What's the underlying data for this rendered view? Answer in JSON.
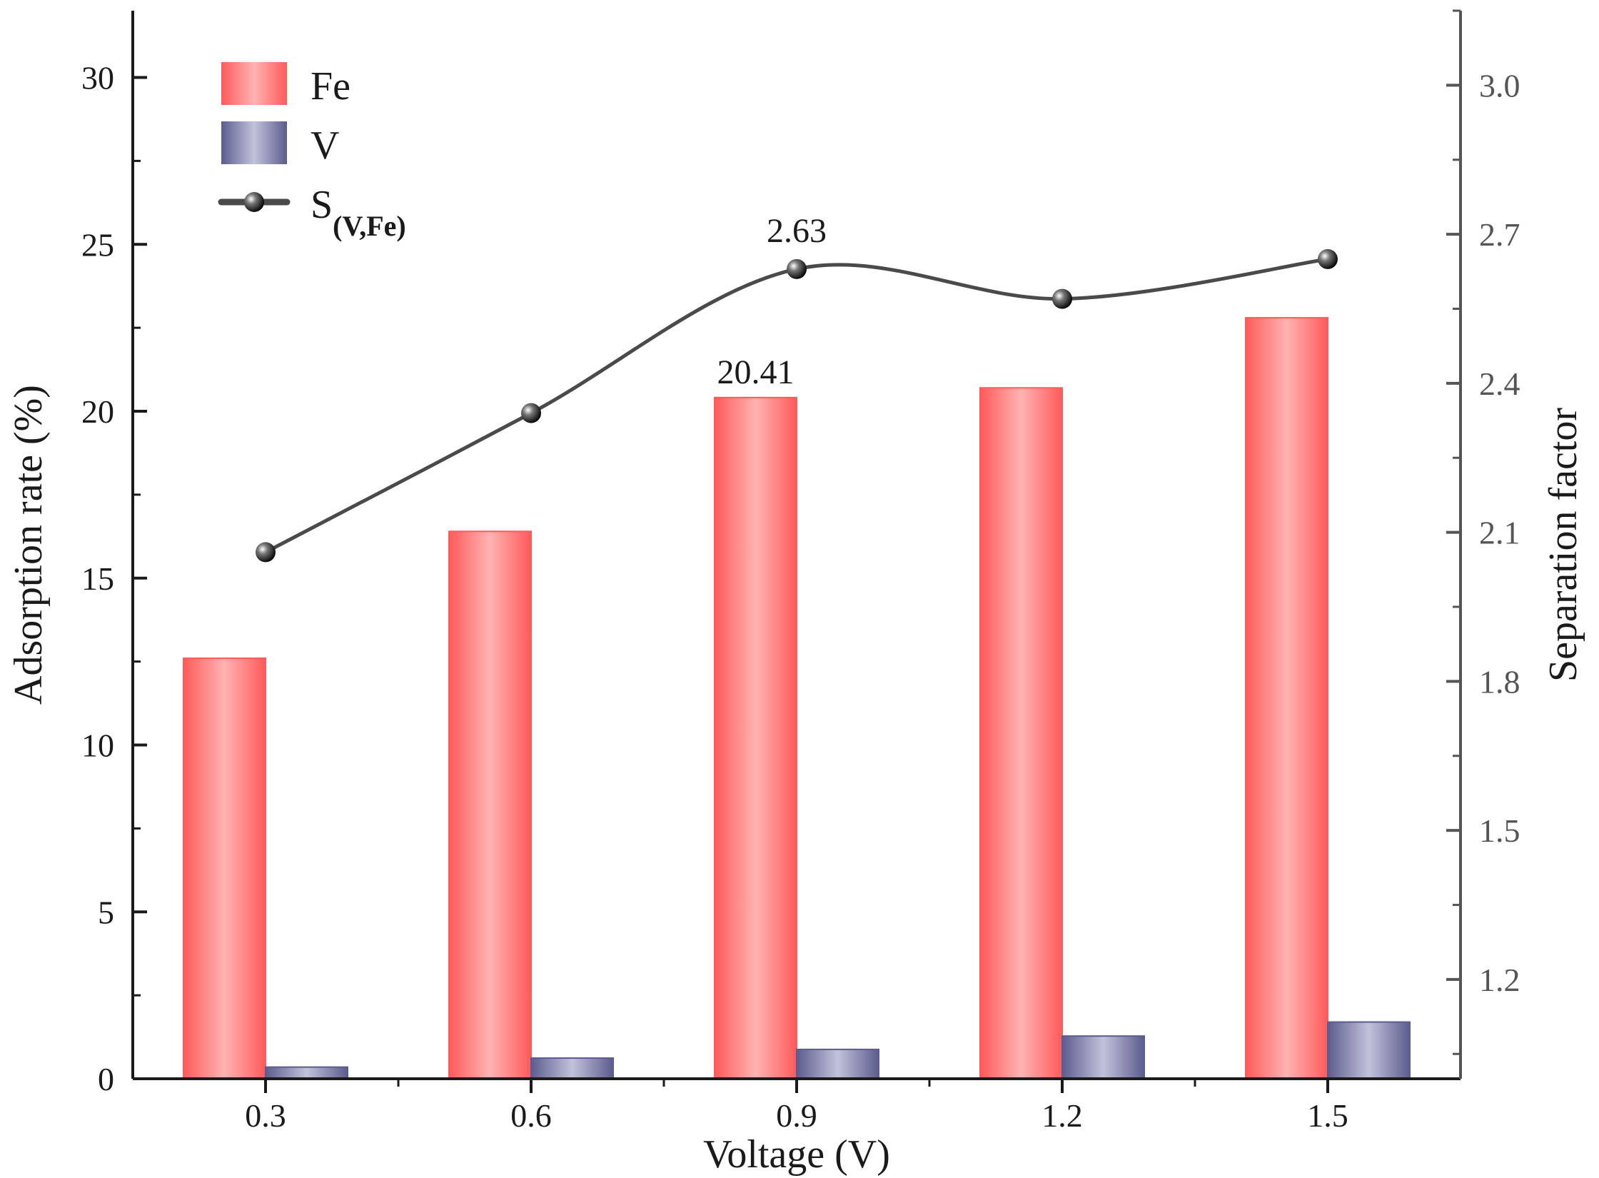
{
  "colors": {
    "fe_edge": "#ff5a5a",
    "fe_center": "#ffb3b3",
    "v_edge": "#5c5c8e",
    "v_center": "#c2c2dc",
    "line": "#4a4a4a",
    "axis": "#1a1a1a",
    "right_axis": "#555555"
  },
  "chart_data": {
    "type": "bar",
    "categories": [
      "0.3",
      "0.6",
      "0.9",
      "1.2",
      "1.5"
    ],
    "series": [
      {
        "name": "Fe",
        "axis": "left",
        "type": "bar",
        "values": [
          12.6,
          16.4,
          20.41,
          20.7,
          22.8
        ]
      },
      {
        "name": "V",
        "axis": "left",
        "type": "bar",
        "values": [
          0.35,
          0.62,
          0.88,
          1.28,
          1.7
        ]
      },
      {
        "name": "S(V,Fe)",
        "axis": "right",
        "type": "line",
        "smooth": true,
        "values": [
          2.06,
          2.34,
          2.63,
          2.57,
          2.65
        ]
      }
    ],
    "xlabel": "Voltage (V)",
    "ylabel": "Adsorption rate (%)",
    "y2label": "Separation factor",
    "ylim": [
      0,
      32
    ],
    "y2lim": [
      1.0,
      3.15
    ],
    "yticks": [
      "0",
      "5",
      "10",
      "15",
      "20",
      "25",
      "30"
    ],
    "y2ticks": [
      "1.2",
      "1.5",
      "1.8",
      "2.1",
      "2.4",
      "2.7",
      "3.0"
    ],
    "annotations": [
      {
        "text": "20.41",
        "category": "0.9",
        "series": "Fe"
      },
      {
        "text": "2.63",
        "category": "0.9",
        "series": "S(V,Fe)"
      }
    ],
    "legend": {
      "position": "top-left",
      "entries": [
        {
          "main": "Fe",
          "sub": ""
        },
        {
          "main": "V",
          "sub": ""
        },
        {
          "main": "S",
          "sub": "(V,Fe)"
        }
      ]
    }
  }
}
